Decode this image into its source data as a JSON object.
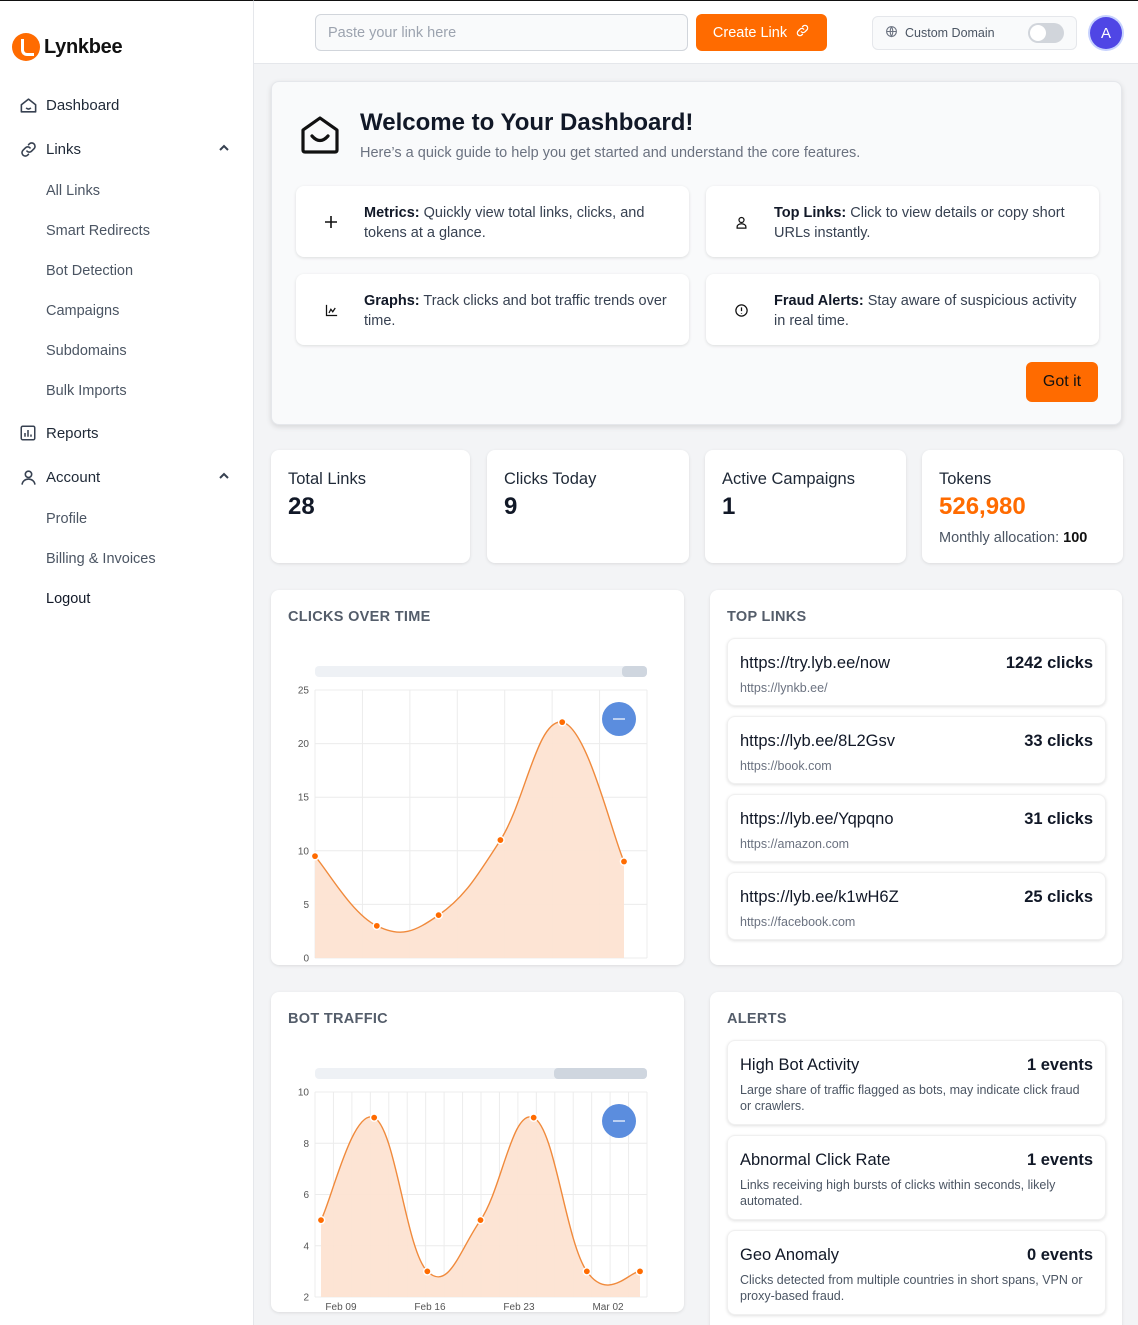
{
  "brand": {
    "name": "Lynkbee"
  },
  "sidebar": {
    "items": [
      {
        "label": "Dashboard",
        "icon": "home-icon"
      },
      {
        "label": "Links",
        "icon": "link-icon",
        "expanded": true,
        "children": [
          "All Links",
          "Smart Redirects",
          "Bot Detection",
          "Campaigns",
          "Subdomains",
          "Bulk Imports"
        ]
      },
      {
        "label": "Reports",
        "icon": "bar-chart-icon"
      },
      {
        "label": "Account",
        "icon": "user-icon",
        "expanded": true,
        "children": [
          "Profile",
          "Billing & Invoices",
          "Logout"
        ]
      }
    ]
  },
  "topbar": {
    "link_placeholder": "Paste your link here",
    "create_label": "Create Link",
    "custom_domain_label": "Custom Domain",
    "custom_domain_enabled": false,
    "avatar_initial": "A"
  },
  "welcome": {
    "title": "Welcome to Your Dashboard!",
    "subtitle": "Here’s a quick guide to help you get started and understand the core features.",
    "features": [
      {
        "title": "Metrics:",
        "text": "Quickly view total links, clicks, and tokens at a glance.",
        "icon": "plus-icon"
      },
      {
        "title": "Top Links:",
        "text": "Click to view details or copy short URLs instantly.",
        "icon": "user-icon"
      },
      {
        "title": "Graphs:",
        "text": "Track clicks and bot traffic trends over time.",
        "icon": "chart-icon"
      },
      {
        "title": "Fraud Alerts:",
        "text": "Stay aware of suspicious activity in real time.",
        "icon": "info-icon"
      }
    ],
    "got_it_label": "Got it"
  },
  "stats": [
    {
      "label": "Total Links",
      "value": "28"
    },
    {
      "label": "Clicks Today",
      "value": "9"
    },
    {
      "label": "Active Campaigns",
      "value": "1"
    },
    {
      "label": "Tokens",
      "value": "526,980",
      "note_label": "Monthly allocation:",
      "note_value": "100"
    }
  ],
  "clicks_panel": {
    "title": "CLICKS OVER TIME"
  },
  "bot_panel": {
    "title": "BOT TRAFFIC"
  },
  "top_links": {
    "title": "TOP LINKS",
    "items": [
      {
        "short": "https://try.lyb.ee/now",
        "clicks": "1242 clicks",
        "dest": "https://lynkb.ee/"
      },
      {
        "short": "https://lyb.ee/8L2Gsv",
        "clicks": "33 clicks",
        "dest": "https://book.com"
      },
      {
        "short": "https://lyb.ee/Yqpqno",
        "clicks": "31 clicks",
        "dest": "https://amazon.com"
      },
      {
        "short": "https://lyb.ee/k1wH6Z",
        "clicks": "25 clicks",
        "dest": "https://facebook.com"
      }
    ]
  },
  "alerts": {
    "title": "ALERTS",
    "items": [
      {
        "title": "High Bot Activity",
        "count": "1 events",
        "desc": "Large share of traffic flagged as bots, may indicate click fraud or crawlers."
      },
      {
        "title": "Abnormal Click Rate",
        "count": "1 events",
        "desc": "Links receiving high bursts of clicks within seconds, likely automated."
      },
      {
        "title": "Geo Anomaly",
        "count": "0 events",
        "desc": "Clicks detected from multiple countries in short spans, VPN or proxy-based fraud."
      }
    ]
  },
  "colors": {
    "accent": "#ff6b00",
    "area_fill": "#fde3d2",
    "line": "#f08a3c",
    "zoom_button": "#5b8dde"
  },
  "chart_data": [
    {
      "type": "area",
      "title": "CLICKS OVER TIME",
      "x": [
        0,
        1,
        2,
        3,
        4,
        5
      ],
      "values": [
        9.5,
        3,
        4,
        11,
        22,
        9
      ],
      "yticks": [
        0,
        5,
        10,
        15,
        20,
        25
      ],
      "ylim": [
        0,
        25
      ],
      "grid": true
    },
    {
      "type": "area",
      "title": "BOT TRAFFIC",
      "xticks": [
        "Feb 09",
        "Feb 16",
        "Feb 23",
        "Mar 02"
      ],
      "values": [
        5,
        9,
        3,
        5,
        9,
        3,
        3
      ],
      "yticks": [
        2,
        4,
        6,
        8,
        10
      ],
      "ylim": [
        2,
        10
      ],
      "grid": true
    }
  ]
}
